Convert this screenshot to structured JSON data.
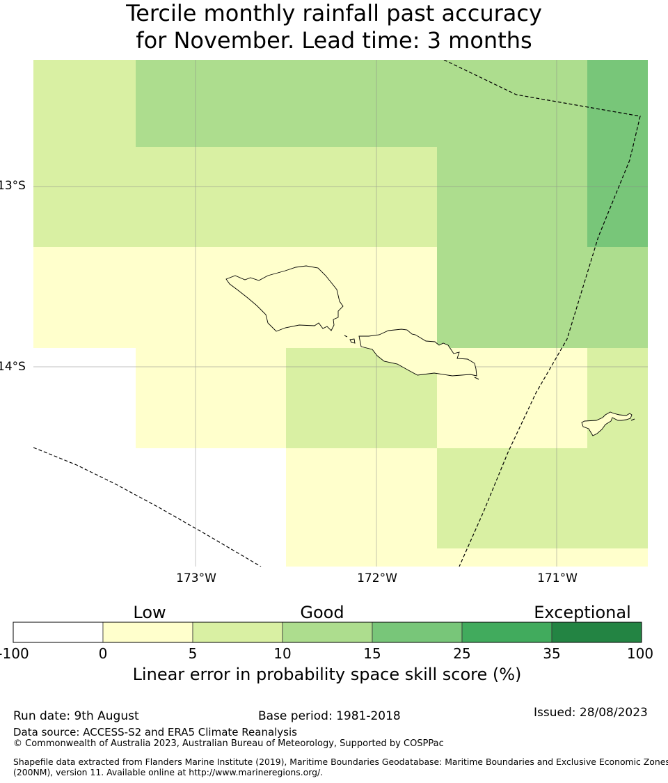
{
  "title": {
    "line1": "Tercile monthly rainfall past accuracy",
    "line2": "for November. Lead time: 3 months"
  },
  "map": {
    "lat_labels": [
      "13°S",
      "14°S"
    ],
    "lon_labels": [
      "173°W",
      "172°W",
      "171°W"
    ]
  },
  "colorbar": {
    "categories": [
      "Low",
      "Good",
      "Exceptional"
    ],
    "ticks": [
      "-100",
      "0",
      "5",
      "10",
      "15",
      "25",
      "35",
      "100"
    ],
    "colors": [
      "#ffffff",
      "#ffffcc",
      "#d9f0a3",
      "#addd8e",
      "#78c679",
      "#41ab5d",
      "#238443"
    ],
    "label": "Linear error in probability space skill score (%)"
  },
  "footer": {
    "run_date": "Run date: 9th August",
    "base_period": "Base period: 1981-2018",
    "issued": "Issued: 28/08/2023",
    "data_source": "Data source: ACCESS-S2 and ERA5 Climate Reanalysis",
    "copyright": "© Commonwealth of Australia 2023, Australian Bureau of Meteorology, Supported by COSPPac",
    "shapefile_line1": "Shapefile data extracted from Flanders Marine Institute (2019), Maritime Boundaries Geodatabase: Maritime Boundaries and Exclusive Economic Zones",
    "shapefile_line2": "(200NM), version 11. Available online at http://www.marineregions.org/."
  }
}
